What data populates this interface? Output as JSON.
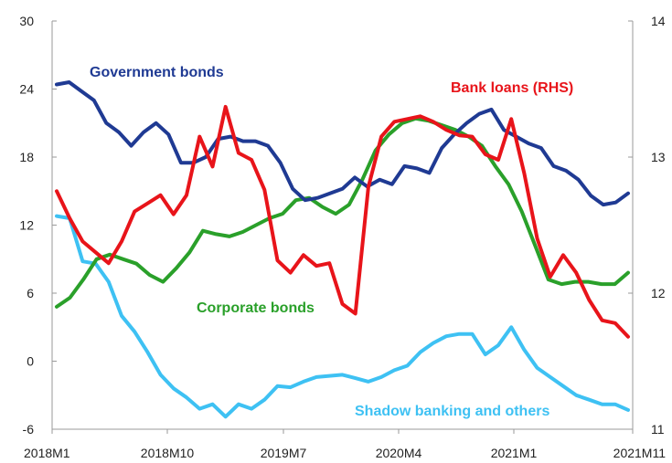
{
  "chart_data": {
    "type": "line",
    "title": "",
    "xlabel": "",
    "ylabel": "",
    "x_tick_labels": [
      "2018M1",
      "2018M10",
      "2019M7",
      "2020M4",
      "2021M1",
      "2021M11"
    ],
    "x_range": [
      "2018M1",
      "2021M11"
    ],
    "left_axis": {
      "ylim": [
        -6,
        30
      ],
      "ticks": [
        "-6",
        "0",
        "6",
        "12",
        "18",
        "24",
        "30"
      ]
    },
    "right_axis": {
      "ylim": [
        11,
        14
      ],
      "visible_ticks": [
        "11",
        "12",
        "13",
        "14"
      ]
    },
    "grid": false,
    "series": [
      {
        "name": "Government bonds",
        "axis": "left",
        "color": "#1f3a93",
        "values": [
          24.4,
          24.6,
          23.8,
          23.0,
          21.0,
          20.2,
          19.0,
          20.2,
          21.0,
          20.0,
          17.5,
          17.5,
          18.0,
          19.6,
          19.8,
          19.4,
          19.4,
          19.0,
          17.5,
          15.2,
          14.2,
          14.4,
          14.8,
          15.2,
          16.2,
          15.4,
          16.0,
          15.6,
          17.2,
          17.0,
          16.6,
          18.8,
          20.0,
          21.0,
          21.8,
          22.2,
          20.4,
          19.8,
          19.2,
          18.8,
          17.2,
          16.8,
          16.0,
          14.6,
          13.8,
          14.0,
          14.8
        ]
      },
      {
        "name": "Bank loans (RHS)",
        "axis": "right",
        "color": "#e8141a",
        "values": [
          12.75,
          12.55,
          12.38,
          12.3,
          12.22,
          12.38,
          12.6,
          12.66,
          12.72,
          12.58,
          12.72,
          13.15,
          12.93,
          13.37,
          13.03,
          12.98,
          12.76,
          12.24,
          12.15,
          12.28,
          12.2,
          12.22,
          11.92,
          11.85,
          12.78,
          13.15,
          13.26,
          13.28,
          13.3,
          13.26,
          13.2,
          13.16,
          13.15,
          13.02,
          12.98,
          13.28,
          12.88,
          12.4,
          12.12,
          12.28,
          12.15,
          11.95,
          11.8,
          11.78,
          11.68
        ]
      },
      {
        "name": "Corporate bonds",
        "axis": "left",
        "color": "#2aa02a",
        "values": [
          4.8,
          5.6,
          7.2,
          9.0,
          9.4,
          9.0,
          8.6,
          7.6,
          7.0,
          8.2,
          9.6,
          11.5,
          11.2,
          11.0,
          11.4,
          12.0,
          12.6,
          13.0,
          14.2,
          14.4,
          13.6,
          13.0,
          13.8,
          16.0,
          18.6,
          20.0,
          21.0,
          21.4,
          21.2,
          20.8,
          20.4,
          19.8,
          19.0,
          17.2,
          15.6,
          13.2,
          10.2,
          7.2,
          6.8,
          7.0,
          7.0,
          6.8,
          6.8,
          7.8
        ]
      },
      {
        "name": "Shadow banking and others",
        "axis": "left",
        "color": "#3ec1f3",
        "values": [
          12.8,
          12.6,
          8.8,
          8.6,
          7.0,
          4.0,
          2.6,
          0.8,
          -1.2,
          -2.4,
          -3.2,
          -4.2,
          -3.8,
          -4.9,
          -3.8,
          -4.2,
          -3.4,
          -2.2,
          -2.3,
          -1.8,
          -1.4,
          -1.3,
          -1.2,
          -1.5,
          -1.8,
          -1.4,
          -0.8,
          -0.4,
          0.8,
          1.6,
          2.2,
          2.4,
          2.4,
          0.6,
          1.4,
          3.0,
          1.0,
          -0.6,
          -1.4,
          -2.2,
          -3.0,
          -3.4,
          -3.8,
          -3.8,
          -4.3
        ]
      }
    ]
  }
}
